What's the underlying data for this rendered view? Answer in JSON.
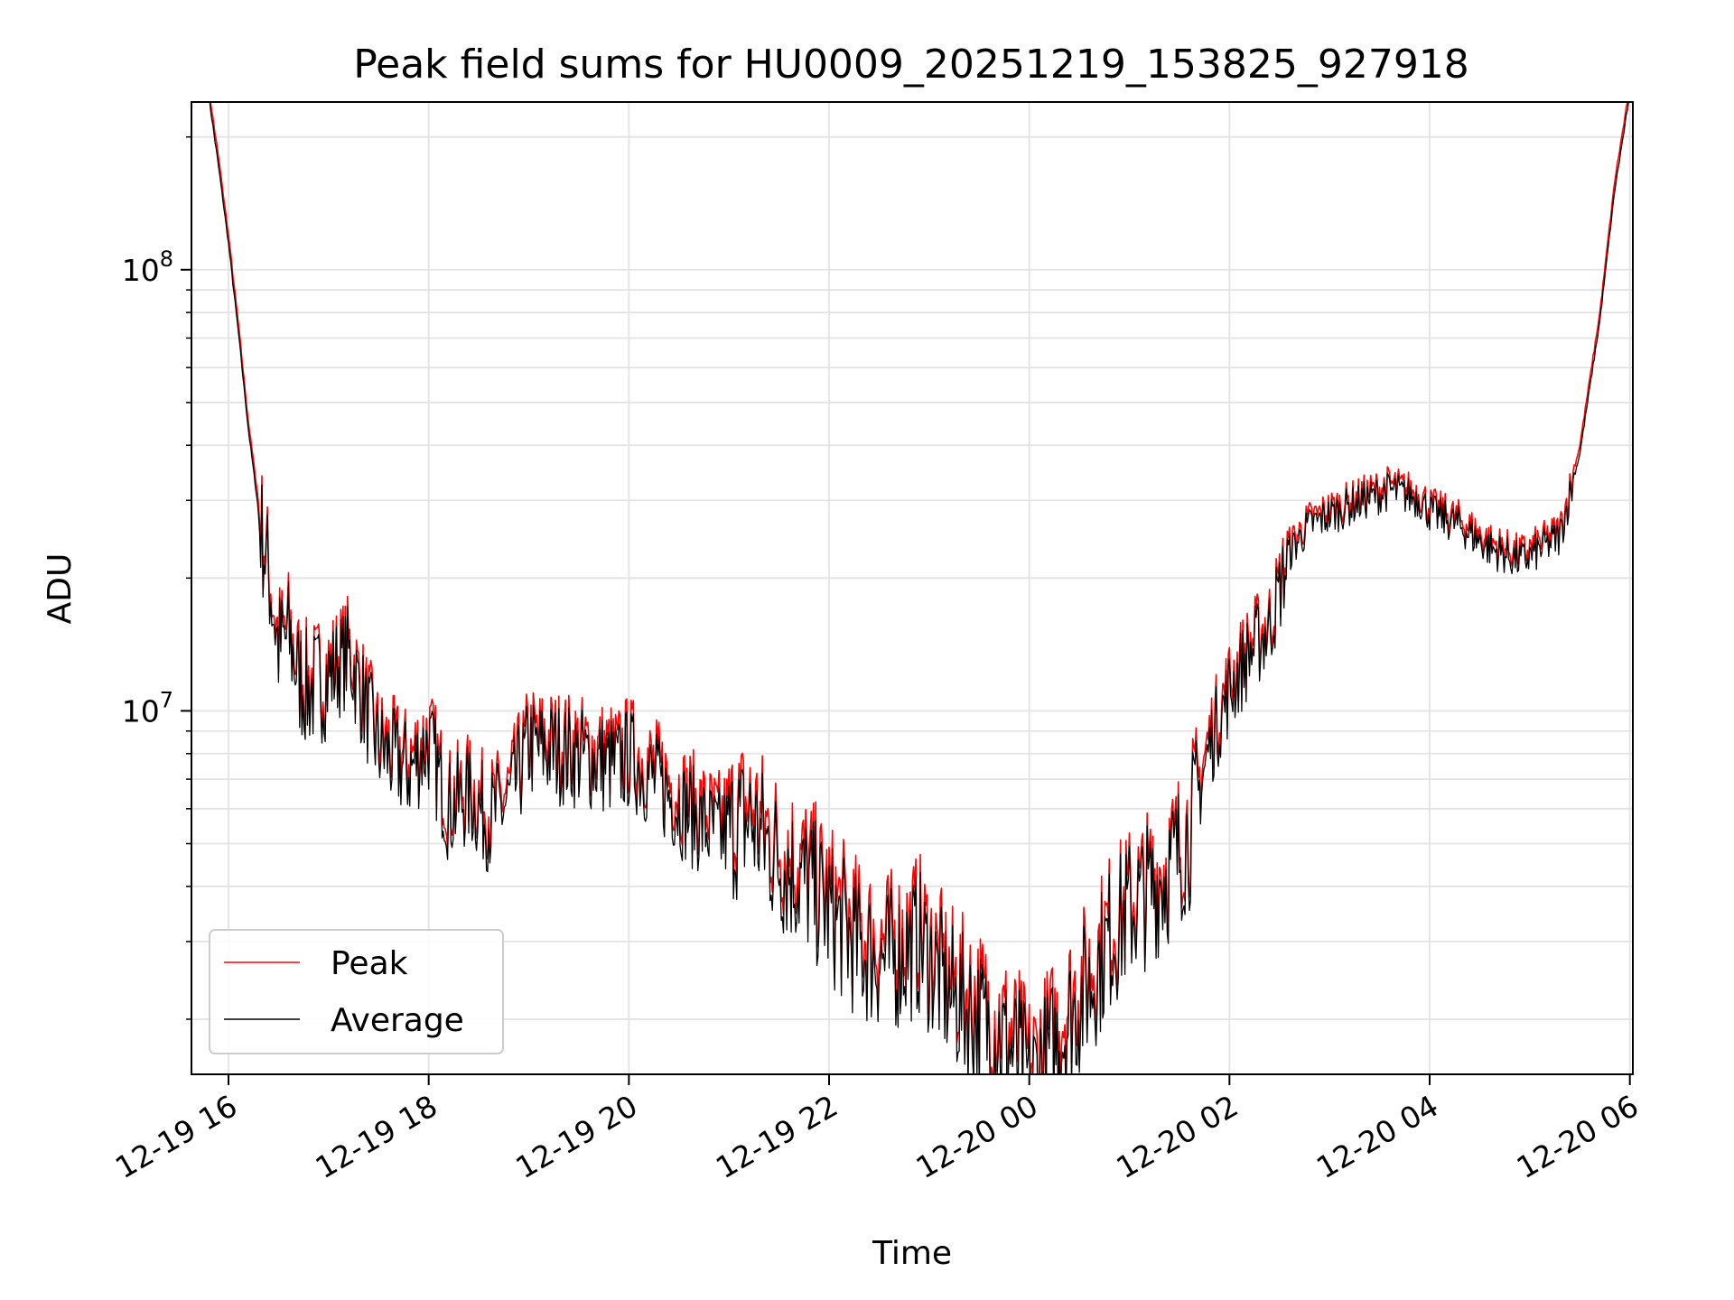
{
  "chart_data": {
    "type": "line",
    "title": "Peak field sums for HU0009_20251219_153825_927918",
    "xlabel": "Time",
    "ylabel": "ADU",
    "yscale": "log",
    "ylim": [
      1500000,
      240000000
    ],
    "xlim_hours": [
      15.63,
      30.03
    ],
    "grid": true,
    "legend_position": "lower-left",
    "x_ticks": [
      {
        "hour": 16,
        "label": "12-19 16"
      },
      {
        "hour": 18,
        "label": "12-19 18"
      },
      {
        "hour": 20,
        "label": "12-19 20"
      },
      {
        "hour": 22,
        "label": "12-19 22"
      },
      {
        "hour": 24,
        "label": "12-20 00"
      },
      {
        "hour": 26,
        "label": "12-20 02"
      },
      {
        "hour": 28,
        "label": "12-20 04"
      },
      {
        "hour": 30,
        "label": "12-20 06"
      }
    ],
    "y_ticks": [
      {
        "value": 10000000,
        "base": "10",
        "exp": "7"
      },
      {
        "value": 100000000,
        "base": "10",
        "exp": "8"
      }
    ],
    "series": [
      {
        "name": "Peak",
        "color": "#ff0000",
        "x": [
          15.8,
          15.9,
          16.0,
          16.1,
          16.2,
          16.3,
          16.4,
          16.5,
          16.6,
          16.7,
          16.8,
          17.0,
          17.2,
          17.5,
          17.8,
          18.0,
          18.2,
          18.4,
          18.6,
          18.8,
          19.0,
          19.3,
          19.6,
          19.9,
          20.0,
          20.3,
          20.6,
          20.9,
          21.2,
          21.5,
          21.8,
          22.0,
          22.3,
          22.6,
          22.9,
          23.2,
          23.5,
          23.7,
          23.9,
          24.0,
          24.2,
          24.4,
          24.6,
          24.8,
          25.0,
          25.2,
          25.4,
          25.6,
          25.8,
          26.0,
          26.2,
          26.4,
          26.6,
          26.8,
          27.0,
          27.3,
          27.6,
          27.9,
          28.0,
          28.3,
          28.6,
          28.9,
          29.0,
          29.3,
          29.5,
          29.7,
          29.85,
          30.0
        ],
        "values": [
          260000000,
          180000000,
          120000000,
          75000000,
          45000000,
          30000000,
          22000000,
          15000000,
          16000000,
          13000000,
          12000000,
          13000000,
          14500000,
          9000000,
          8000000,
          9200000,
          6500000,
          7000000,
          6200000,
          6800000,
          9000000,
          8800000,
          8500000,
          8200000,
          8600000,
          7500000,
          6500000,
          5800000,
          6400000,
          5200000,
          4600000,
          4000000,
          3300000,
          3100000,
          3400000,
          2600000,
          2300000,
          2100000,
          1850000,
          1650000,
          1900000,
          2300000,
          2700000,
          3400000,
          3900000,
          4300000,
          4800000,
          5800000,
          9000000,
          12000000,
          14500000,
          16500000,
          24000000,
          27500000,
          29000000,
          31000000,
          33000000,
          31500000,
          29500000,
          27500000,
          24500000,
          23000000,
          23500000,
          26000000,
          40000000,
          80000000,
          160000000,
          260000000
        ]
      },
      {
        "name": "Average",
        "color": "#000000",
        "x": [
          15.8,
          15.9,
          16.0,
          16.1,
          16.2,
          16.3,
          16.4,
          16.5,
          16.6,
          16.7,
          16.8,
          17.0,
          17.2,
          17.5,
          17.8,
          18.0,
          18.2,
          18.4,
          18.6,
          18.8,
          19.0,
          19.3,
          19.6,
          19.9,
          20.0,
          20.3,
          20.6,
          20.9,
          21.2,
          21.5,
          21.8,
          22.0,
          22.3,
          22.6,
          22.9,
          23.2,
          23.5,
          23.7,
          23.9,
          24.0,
          24.2,
          24.4,
          24.6,
          24.8,
          25.0,
          25.2,
          25.4,
          25.6,
          25.8,
          26.0,
          26.2,
          26.4,
          26.6,
          26.8,
          27.0,
          27.3,
          27.6,
          27.9,
          28.0,
          28.3,
          28.6,
          28.9,
          29.0,
          29.3,
          29.5,
          29.7,
          29.85,
          30.0
        ],
        "values": [
          255000000,
          175000000,
          117000000,
          73000000,
          44000000,
          29000000,
          21500000,
          14500000,
          15500000,
          12500000,
          11600000,
          12500000,
          14000000,
          8600000,
          7600000,
          8800000,
          6200000,
          6700000,
          5900000,
          6500000,
          8600000,
          8400000,
          8100000,
          7800000,
          8200000,
          7100000,
          6100000,
          5400000,
          6000000,
          4800000,
          4250000,
          3700000,
          3050000,
          2850000,
          3150000,
          2400000,
          2100000,
          1950000,
          1700000,
          1520000,
          1750000,
          2100000,
          2500000,
          3200000,
          3700000,
          4100000,
          4600000,
          5500000,
          8600000,
          11500000,
          14000000,
          16000000,
          23500000,
          27000000,
          28500000,
          30500000,
          32500000,
          31000000,
          29000000,
          27000000,
          24000000,
          22500000,
          23000000,
          25500000,
          39000000,
          78000000,
          155000000,
          255000000
        ]
      }
    ]
  }
}
